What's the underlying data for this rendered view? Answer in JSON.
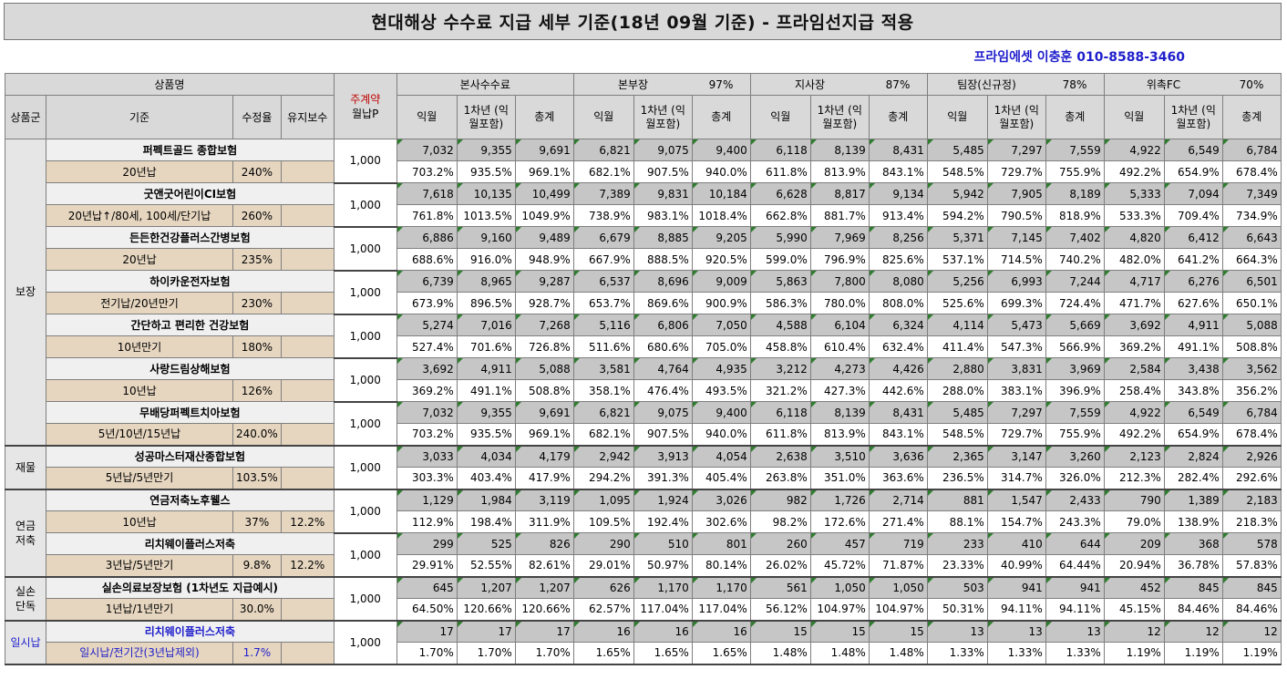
{
  "title": "현대해상 수수료 지급 세부 기준(18년 09월 기준) - 프라임선지급 적용",
  "contact": "프라임에셋 이충훈 010-8588-3460",
  "header": {
    "product_name": "상품명",
    "monthly_label_top": "주계약",
    "monthly_label_bottom": "월납P",
    "group_col": "상품군",
    "basis_col": "기준",
    "rate_col": "수정율",
    "maint_col": "유지보수",
    "sub_cols": [
      "익월",
      "1차년\n(익월포함)",
      "총계"
    ],
    "orgs": [
      {
        "name": "본사수수료",
        "pct": ""
      },
      {
        "name": "본부장",
        "pct": "97%"
      },
      {
        "name": "지사장",
        "pct": "87%"
      },
      {
        "name": "팀장(신규정)",
        "pct": "78%"
      },
      {
        "name": "위촉FC",
        "pct": "70%"
      }
    ]
  },
  "groups": [
    {
      "name": "보장",
      "rows": 7
    },
    {
      "name": "재물",
      "rows": 1
    },
    {
      "name": "연금\n저축",
      "rows": 2
    },
    {
      "name": "실손\n단독",
      "rows": 1
    },
    {
      "name": "일시납",
      "rows": 1
    }
  ],
  "products": [
    {
      "name": "퍼펙트골드 종합보험",
      "basis": "20년납",
      "rate": "240%",
      "maint": "",
      "payment": "1,000",
      "values": [
        "7,032",
        "9,355",
        "9,691",
        "6,821",
        "9,075",
        "9,400",
        "6,118",
        "8,139",
        "8,431",
        "5,485",
        "7,297",
        "7,559",
        "4,922",
        "6,549",
        "6,784"
      ],
      "pcts": [
        "703.2%",
        "935.5%",
        "969.1%",
        "682.1%",
        "907.5%",
        "940.0%",
        "611.8%",
        "813.9%",
        "843.1%",
        "548.5%",
        "729.7%",
        "755.9%",
        "492.2%",
        "654.9%",
        "678.4%"
      ]
    },
    {
      "name": "굿앤굿어린이CI보험",
      "basis": "20년납↑/80세, 100세/단기납",
      "rate": "260%",
      "maint": "",
      "payment": "1,000",
      "values": [
        "7,618",
        "10,135",
        "10,499",
        "7,389",
        "9,831",
        "10,184",
        "6,628",
        "8,817",
        "9,134",
        "5,942",
        "7,905",
        "8,189",
        "5,333",
        "7,094",
        "7,349"
      ],
      "pcts": [
        "761.8%",
        "1013.5%",
        "1049.9%",
        "738.9%",
        "983.1%",
        "1018.4%",
        "662.8%",
        "881.7%",
        "913.4%",
        "594.2%",
        "790.5%",
        "818.9%",
        "533.3%",
        "709.4%",
        "734.9%"
      ]
    },
    {
      "name": "든든한건강플러스간병보험",
      "basis": "20년납",
      "rate": "235%",
      "maint": "",
      "payment": "1,000",
      "values": [
        "6,886",
        "9,160",
        "9,489",
        "6,679",
        "8,885",
        "9,205",
        "5,990",
        "7,969",
        "8,256",
        "5,371",
        "7,145",
        "7,402",
        "4,820",
        "6,412",
        "6,643"
      ],
      "pcts": [
        "688.6%",
        "916.0%",
        "948.9%",
        "667.9%",
        "888.5%",
        "920.5%",
        "599.0%",
        "796.9%",
        "825.6%",
        "537.1%",
        "714.5%",
        "740.2%",
        "482.0%",
        "641.2%",
        "664.3%"
      ]
    },
    {
      "name": "하이카운전자보험",
      "basis": "전기납/20년만기",
      "rate": "230%",
      "maint": "",
      "payment": "1,000",
      "values": [
        "6,739",
        "8,965",
        "9,287",
        "6,537",
        "8,696",
        "9,009",
        "5,863",
        "7,800",
        "8,080",
        "5,256",
        "6,993",
        "7,244",
        "4,717",
        "6,276",
        "6,501"
      ],
      "pcts": [
        "673.9%",
        "896.5%",
        "928.7%",
        "653.7%",
        "869.6%",
        "900.9%",
        "586.3%",
        "780.0%",
        "808.0%",
        "525.6%",
        "699.3%",
        "724.4%",
        "471.7%",
        "627.6%",
        "650.1%"
      ]
    },
    {
      "name": "간단하고 편리한 건강보험",
      "basis": "10년만기",
      "rate": "180%",
      "maint": "",
      "payment": "1,000",
      "values": [
        "5,274",
        "7,016",
        "7,268",
        "5,116",
        "6,806",
        "7,050",
        "4,588",
        "6,104",
        "6,324",
        "4,114",
        "5,473",
        "5,669",
        "3,692",
        "4,911",
        "5,088"
      ],
      "pcts": [
        "527.4%",
        "701.6%",
        "726.8%",
        "511.6%",
        "680.6%",
        "705.0%",
        "458.8%",
        "610.4%",
        "632.4%",
        "411.4%",
        "547.3%",
        "566.9%",
        "369.2%",
        "491.1%",
        "508.8%"
      ]
    },
    {
      "name": "사랑드림상해보험",
      "basis": "10년납",
      "rate": "126%",
      "maint": "",
      "payment": "1,000",
      "values": [
        "3,692",
        "4,911",
        "5,088",
        "3,581",
        "4,764",
        "4,935",
        "3,212",
        "4,273",
        "4,426",
        "2,880",
        "3,831",
        "3,969",
        "2,584",
        "3,438",
        "3,562"
      ],
      "pcts": [
        "369.2%",
        "491.1%",
        "508.8%",
        "358.1%",
        "476.4%",
        "493.5%",
        "321.2%",
        "427.3%",
        "442.6%",
        "288.0%",
        "383.1%",
        "396.9%",
        "258.4%",
        "343.8%",
        "356.2%"
      ]
    },
    {
      "name": "무배당퍼펙트치아보험",
      "basis": "5년/10년/15년납",
      "rate": "240.0%",
      "maint": "",
      "payment": "1,000",
      "values": [
        "7,032",
        "9,355",
        "9,691",
        "6,821",
        "9,075",
        "9,400",
        "6,118",
        "8,139",
        "8,431",
        "5,485",
        "7,297",
        "7,559",
        "4,922",
        "6,549",
        "6,784"
      ],
      "pcts": [
        "703.2%",
        "935.5%",
        "969.1%",
        "682.1%",
        "907.5%",
        "940.0%",
        "611.8%",
        "813.9%",
        "843.1%",
        "548.5%",
        "729.7%",
        "755.9%",
        "492.2%",
        "654.9%",
        "678.4%"
      ]
    },
    {
      "name": "성공마스터재산종합보험",
      "basis": "5년납/5년만기",
      "rate": "103.5%",
      "maint": "",
      "payment": "1,000",
      "values": [
        "3,033",
        "4,034",
        "4,179",
        "2,942",
        "3,913",
        "4,054",
        "2,638",
        "3,510",
        "3,636",
        "2,365",
        "3,147",
        "3,260",
        "2,123",
        "2,824",
        "2,926"
      ],
      "pcts": [
        "303.3%",
        "403.4%",
        "417.9%",
        "294.2%",
        "391.3%",
        "405.4%",
        "263.8%",
        "351.0%",
        "363.6%",
        "236.5%",
        "314.7%",
        "326.0%",
        "212.3%",
        "282.4%",
        "292.6%"
      ]
    },
    {
      "name": "연금저축노후웰스",
      "basis": "10년납",
      "rate": "37%",
      "maint": "12.2%",
      "payment": "1,000",
      "values": [
        "1,129",
        "1,984",
        "3,119",
        "1,095",
        "1,924",
        "3,026",
        "982",
        "1,726",
        "2,714",
        "881",
        "1,547",
        "2,433",
        "790",
        "1,389",
        "2,183"
      ],
      "pcts": [
        "112.9%",
        "198.4%",
        "311.9%",
        "109.5%",
        "192.4%",
        "302.6%",
        "98.2%",
        "172.6%",
        "271.4%",
        "88.1%",
        "154.7%",
        "243.3%",
        "79.0%",
        "138.9%",
        "218.3%"
      ]
    },
    {
      "name": "리치웨이플러스저축",
      "basis": "3년납/5년만기",
      "rate": "9.8%",
      "maint": "12.2%",
      "payment": "1,000",
      "values": [
        "299",
        "525",
        "826",
        "290",
        "510",
        "801",
        "260",
        "457",
        "719",
        "233",
        "410",
        "644",
        "209",
        "368",
        "578"
      ],
      "pcts": [
        "29.91%",
        "52.55%",
        "82.61%",
        "29.01%",
        "50.97%",
        "80.14%",
        "26.02%",
        "45.72%",
        "71.87%",
        "23.33%",
        "40.99%",
        "64.44%",
        "20.94%",
        "36.78%",
        "57.83%"
      ]
    },
    {
      "name": "실손의료보장보험 (1차년도 지급예시)",
      "basis": "1년납/1년만기",
      "rate": "30.0%",
      "maint": "",
      "payment": "1,000",
      "values": [
        "645",
        "1,207",
        "1,207",
        "626",
        "1,170",
        "1,170",
        "561",
        "1,050",
        "1,050",
        "503",
        "941",
        "941",
        "452",
        "845",
        "845"
      ],
      "pcts": [
        "64.50%",
        "120.66%",
        "120.66%",
        "62.57%",
        "117.04%",
        "117.04%",
        "56.12%",
        "104.97%",
        "104.97%",
        "50.31%",
        "94.11%",
        "94.11%",
        "45.15%",
        "84.46%",
        "84.46%"
      ]
    },
    {
      "name": "리치웨이플러스저축",
      "basis": "일시납/전기간(3년납제외)",
      "rate": "1.7%",
      "maint": "",
      "payment": "1,000",
      "blue": true,
      "values": [
        "17",
        "17",
        "17",
        "16",
        "16",
        "16",
        "15",
        "15",
        "15",
        "13",
        "13",
        "13",
        "12",
        "12",
        "12"
      ],
      "pcts": [
        "1.70%",
        "1.70%",
        "1.70%",
        "1.65%",
        "1.65%",
        "1.65%",
        "1.48%",
        "1.48%",
        "1.48%",
        "1.33%",
        "1.33%",
        "1.33%",
        "1.19%",
        "1.19%",
        "1.19%"
      ]
    }
  ]
}
